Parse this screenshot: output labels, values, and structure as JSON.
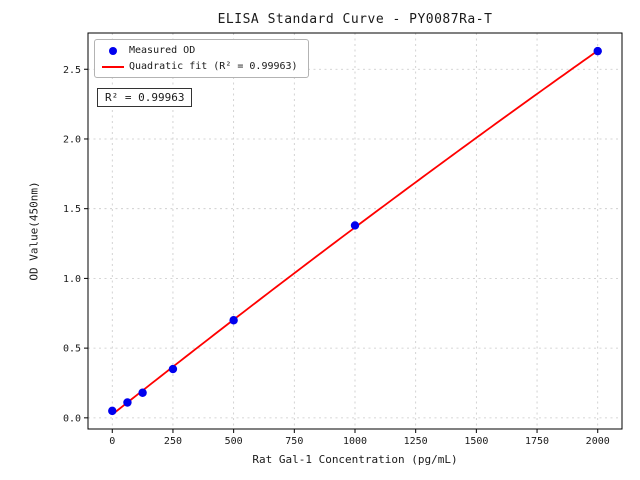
{
  "chart_data": {
    "type": "scatter",
    "title": "ELISA Standard Curve - PY0087Ra-T",
    "xlabel": "Rat Gal-1 Concentration (pg/mL)",
    "ylabel": "OD Value(450nm)",
    "series": [
      {
        "name": "Measured OD",
        "type": "scatter",
        "color": "#0000ee",
        "x": [
          0,
          62.5,
          125,
          250,
          500,
          1000,
          2000
        ],
        "y": [
          0.05,
          0.11,
          0.18,
          0.35,
          0.7,
          1.38,
          2.63
        ]
      },
      {
        "name": "Quadratic fit (R² = 0.99963)",
        "type": "line",
        "color": "#ff0000",
        "fit": "quadratic"
      }
    ],
    "xticks": [
      0,
      250,
      500,
      750,
      1000,
      1250,
      1500,
      1750,
      2000
    ],
    "yticks": [
      0,
      0.5,
      1,
      1.5,
      2,
      2.5
    ],
    "xlim": [
      -100,
      2100
    ],
    "ylim": [
      -0.08,
      2.76
    ],
    "grid": true,
    "legend": {
      "position": "upper-left",
      "entries": [
        {
          "label": "Measured OD",
          "marker": "dot",
          "color": "#0000ee"
        },
        {
          "label": "Quadratic fit (R² = 0.99963)",
          "marker": "line",
          "color": "#ff0000"
        }
      ]
    },
    "annotation": "R² = 0.99963",
    "r_squared": 0.99963
  }
}
